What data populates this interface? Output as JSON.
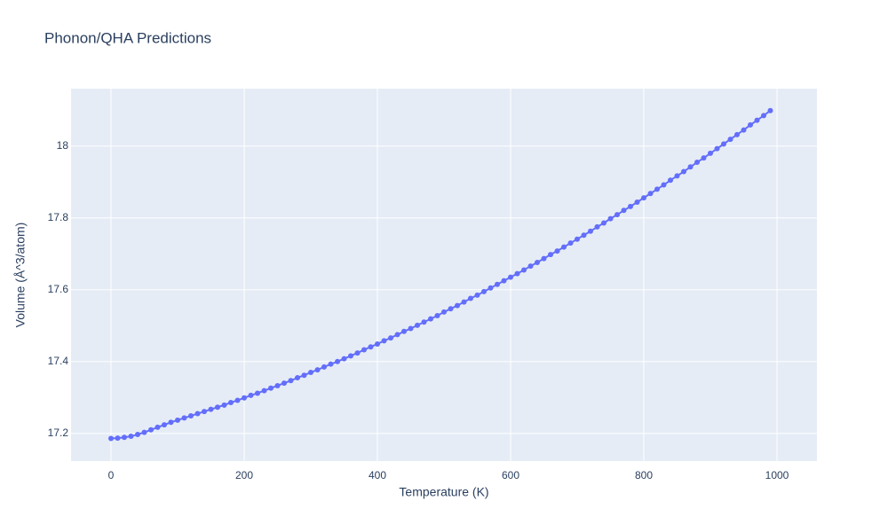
{
  "chart_data": {
    "type": "line",
    "title": "Phonon/QHA Predictions",
    "xlabel": "Temperature (K)",
    "ylabel": "Volume (Å^3/atom)",
    "x": [
      0,
      10,
      20,
      30,
      40,
      50,
      60,
      70,
      80,
      90,
      100,
      110,
      120,
      130,
      140,
      150,
      160,
      170,
      180,
      190,
      200,
      210,
      220,
      230,
      240,
      250,
      260,
      270,
      280,
      290,
      300,
      310,
      320,
      330,
      340,
      350,
      360,
      370,
      380,
      390,
      400,
      410,
      420,
      430,
      440,
      450,
      460,
      470,
      480,
      490,
      500,
      510,
      520,
      530,
      540,
      550,
      560,
      570,
      580,
      590,
      600,
      610,
      620,
      630,
      640,
      650,
      660,
      670,
      680,
      690,
      700,
      710,
      720,
      730,
      740,
      750,
      760,
      770,
      780,
      790,
      800,
      810,
      820,
      830,
      840,
      850,
      860,
      870,
      880,
      890,
      900,
      910,
      920,
      930,
      940,
      950,
      960,
      970,
      980,
      990
    ],
    "series": [
      {
        "name": "Volume",
        "color": "#636efa",
        "values": [
          17.186,
          17.187,
          17.189,
          17.192,
          17.197,
          17.203,
          17.21,
          17.217,
          17.224,
          17.231,
          17.237,
          17.243,
          17.249,
          17.255,
          17.261,
          17.267,
          17.273,
          17.279,
          17.286,
          17.292,
          17.299,
          17.306,
          17.312,
          17.319,
          17.326,
          17.333,
          17.34,
          17.347,
          17.355,
          17.362,
          17.37,
          17.377,
          17.385,
          17.393,
          17.4,
          17.408,
          17.416,
          17.424,
          17.433,
          17.441,
          17.449,
          17.458,
          17.466,
          17.475,
          17.484,
          17.492,
          17.501,
          17.51,
          17.519,
          17.528,
          17.538,
          17.547,
          17.556,
          17.566,
          17.576,
          17.585,
          17.595,
          17.605,
          17.615,
          17.625,
          17.635,
          17.645,
          17.655,
          17.666,
          17.676,
          17.687,
          17.698,
          17.708,
          17.719,
          17.73,
          17.741,
          17.752,
          17.763,
          17.775,
          17.786,
          17.798,
          17.809,
          17.821,
          17.832,
          17.844,
          17.856,
          17.868,
          17.88,
          17.892,
          17.905,
          17.917,
          17.929,
          17.942,
          17.955,
          17.967,
          17.98,
          17.993,
          18.006,
          18.019,
          18.032,
          18.045,
          18.059,
          18.072,
          18.085,
          18.099
        ]
      }
    ],
    "xlim": [
      -60,
      1060
    ],
    "ylim": [
      17.123,
      18.16
    ],
    "xticks": [
      0,
      200,
      400,
      600,
      800,
      1000
    ],
    "yticks": [
      17.2,
      17.4,
      17.6,
      17.8,
      18
    ],
    "grid": true
  }
}
